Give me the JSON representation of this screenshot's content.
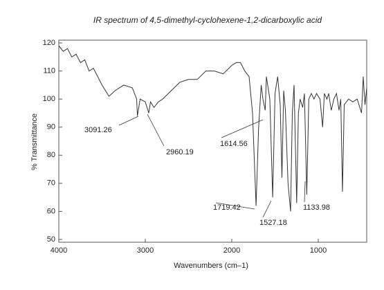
{
  "chart_data": {
    "type": "line",
    "title": "IR spectrum of 4,5-dimethyl-cyclohexene-1,2-dicarboxylic acid",
    "x_label": "Wavenumbers (cm–1)",
    "y_label": "% Transmittance",
    "xlim": [
      4000,
      440
    ],
    "ylim": [
      49,
      121
    ],
    "xticks": [
      4000,
      3000,
      2000,
      1000
    ],
    "yticks": [
      50,
      60,
      70,
      80,
      90,
      100,
      110,
      120
    ],
    "color": "#333333",
    "x": [
      4000,
      3950,
      3900,
      3850,
      3800,
      3750,
      3700,
      3650,
      3600,
      3500,
      3420,
      3350,
      3250,
      3150,
      3100,
      3091,
      3060,
      3000,
      2960,
      2940,
      2900,
      2850,
      2800,
      2700,
      2600,
      2500,
      2400,
      2300,
      2200,
      2100,
      2000,
      1950,
      1900,
      1850,
      1800,
      1760,
      1719,
      1690,
      1660,
      1640,
      1614,
      1600,
      1560,
      1527,
      1500,
      1470,
      1440,
      1420,
      1400,
      1380,
      1350,
      1320,
      1300,
      1280,
      1250,
      1230,
      1210,
      1180,
      1160,
      1133,
      1110,
      1080,
      1050,
      1020,
      980,
      950,
      930,
      900,
      880,
      850,
      820,
      790,
      760,
      740,
      720,
      700,
      650,
      600,
      550,
      500,
      480,
      460,
      440
    ],
    "values": [
      119,
      117,
      118,
      115,
      116,
      113,
      114,
      110,
      111,
      105,
      101,
      103,
      105,
      104,
      100,
      94,
      100,
      99,
      95,
      99,
      97,
      99,
      100,
      103,
      106,
      107,
      107,
      110,
      110,
      109,
      112,
      113,
      113,
      110,
      108,
      95,
      62,
      90,
      105,
      100,
      96,
      108,
      100,
      65,
      102,
      108,
      98,
      72,
      103,
      96,
      70,
      60,
      95,
      105,
      63,
      95,
      100,
      97,
      102,
      66,
      100,
      102,
      100,
      102,
      100,
      90,
      102,
      100,
      102,
      96,
      100,
      102,
      96,
      100,
      67,
      98,
      100,
      99,
      100,
      95,
      108,
      98,
      104
    ],
    "annotations": [
      "3091.26",
      "2960.19",
      "1614.56",
      "1719.42",
      "1527.18",
      "1133.98"
    ]
  }
}
